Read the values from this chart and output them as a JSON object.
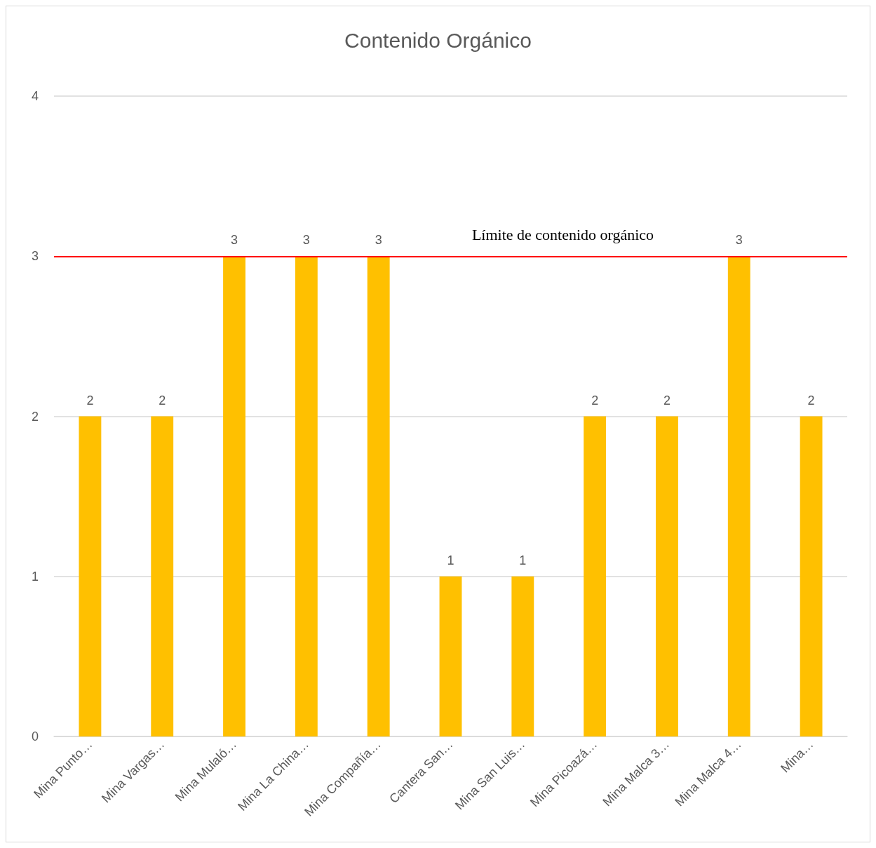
{
  "chart_data": {
    "type": "bar",
    "title": "Contenido Orgánico",
    "categories": [
      "Mina Punto…",
      "Mina Vargas…",
      "Mina Mulaló…",
      "Mina La China…",
      "Mina Compañía…",
      "Cantera San…",
      "Mina San Luis…",
      "Mina Picoazá…",
      "Mina Malca 3…",
      "Mina Malca 4…",
      "Mina…"
    ],
    "values": [
      2,
      2,
      3,
      3,
      3,
      1,
      1,
      2,
      2,
      3,
      2
    ],
    "color": "#ffc000",
    "ylim": [
      0,
      4
    ],
    "yticks": [
      0,
      1,
      2,
      3,
      4
    ],
    "grid": "y",
    "data_labels": true,
    "ref_lines": [
      {
        "axis": "y",
        "value": 3,
        "label": "Límite de contenido orgánico",
        "color": "#ff0000"
      }
    ]
  }
}
